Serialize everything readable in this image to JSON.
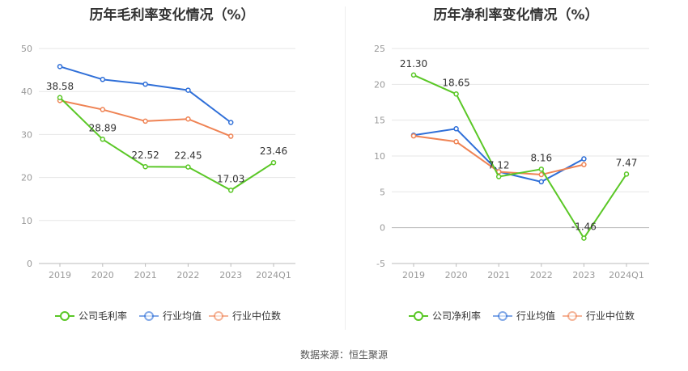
{
  "footer": {
    "source": "数据来源：恒生聚源"
  },
  "chart_data": [
    {
      "type": "line",
      "title": "历年毛利率变化情况（%）",
      "categories": [
        "2019",
        "2020",
        "2021",
        "2022",
        "2023",
        "2024Q1"
      ],
      "ylim": [
        0,
        50
      ],
      "yticks": [
        0,
        10,
        20,
        30,
        40,
        50
      ],
      "grid": true,
      "legend_position": "bottom",
      "series": [
        {
          "name": "公司毛利率",
          "color": "#5ac726",
          "values": [
            38.58,
            28.89,
            22.52,
            22.45,
            17.03,
            23.46
          ],
          "labels": [
            "38.58",
            "28.89",
            "22.52",
            "22.45",
            "17.03",
            "23.46"
          ]
        },
        {
          "name": "行业均值",
          "color": "#2f6fd8",
          "values": [
            45.8,
            42.8,
            41.7,
            40.3,
            32.8,
            null
          ]
        },
        {
          "name": "行业中位数",
          "color": "#ef8354",
          "values": [
            37.9,
            35.8,
            33.1,
            33.6,
            29.6,
            null
          ]
        }
      ]
    },
    {
      "type": "line",
      "title": "历年净利率变化情况（%）",
      "categories": [
        "2019",
        "2020",
        "2021",
        "2022",
        "2023",
        "2024Q1"
      ],
      "ylim": [
        -5,
        25
      ],
      "yticks": [
        -5,
        0,
        5,
        10,
        15,
        20,
        25
      ],
      "grid": true,
      "legend_position": "bottom",
      "series": [
        {
          "name": "公司净利率",
          "color": "#5ac726",
          "values": [
            21.3,
            18.65,
            7.12,
            8.16,
            -1.46,
            7.47
          ],
          "labels": [
            "21.30",
            "18.65",
            "7.12",
            "8.16",
            "-1.46",
            "7.47"
          ]
        },
        {
          "name": "行业均值",
          "color": "#2f6fd8",
          "values": [
            12.9,
            13.8,
            7.8,
            6.4,
            9.6,
            null
          ]
        },
        {
          "name": "行业中位数",
          "color": "#ef8354",
          "values": [
            12.8,
            12.0,
            7.8,
            7.4,
            8.8,
            null
          ]
        }
      ]
    }
  ]
}
